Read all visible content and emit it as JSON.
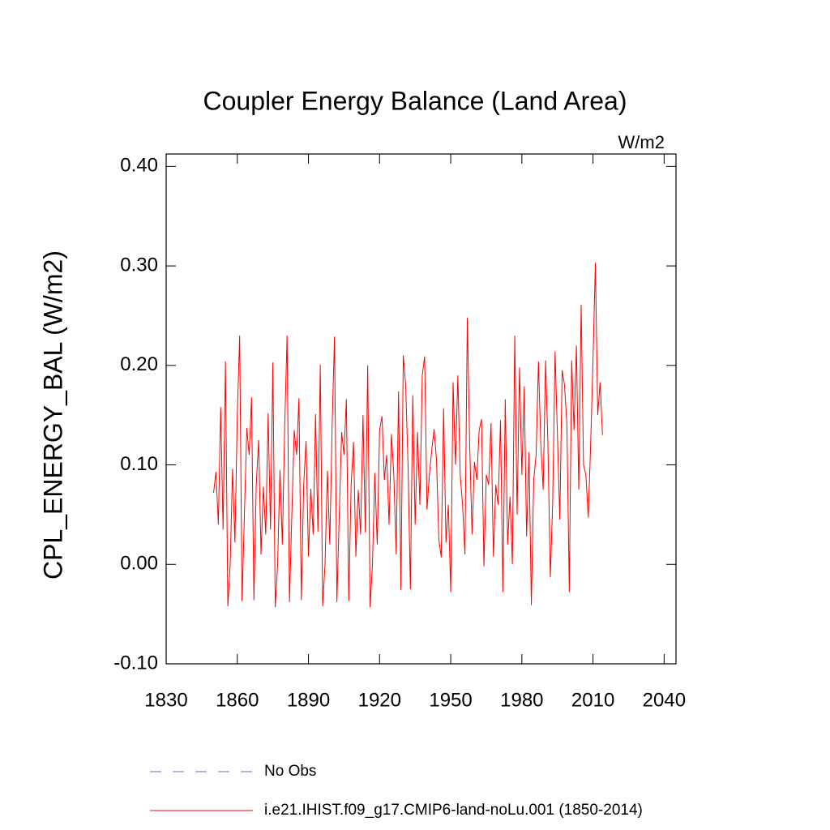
{
  "chart_data": {
    "type": "line",
    "title": "Coupler Energy Balance (Land Area)",
    "unit_label": "W/m2",
    "y_label": "CPL_ENERGY_BAL  (W/m2)",
    "xlim": [
      1830,
      2045
    ],
    "ylim": [
      -0.1,
      0.4125
    ],
    "xticks": [
      1830,
      1860,
      1890,
      1920,
      1950,
      1980,
      2010,
      2040
    ],
    "yticks": [
      {
        "value": -0.1,
        "label": "-0.10"
      },
      {
        "value": 0,
        "label": "0.00"
      },
      {
        "value": 0.1,
        "label": "0.10"
      },
      {
        "value": 0.2,
        "label": "0.20"
      },
      {
        "value": 0.3,
        "label": "0.30"
      },
      {
        "value": 0.4,
        "label": "0.40"
      }
    ],
    "legend_items": [
      {
        "name": "No Obs",
        "color": "#6a6ac4",
        "dash": true
      }
    ],
    "x": [
      1850,
      1851,
      1852,
      1853,
      1854,
      1855,
      1856,
      1857,
      1858,
      1859,
      1860,
      1861,
      1862,
      1863,
      1864,
      1865,
      1866,
      1867,
      1868,
      1869,
      1870,
      1871,
      1872,
      1873,
      1874,
      1875,
      1876,
      1877,
      1878,
      1879,
      1880,
      1881,
      1882,
      1883,
      1884,
      1885,
      1886,
      1887,
      1888,
      1889,
      1890,
      1891,
      1892,
      1893,
      1894,
      1895,
      1896,
      1897,
      1898,
      1899,
      1900,
      1901,
      1902,
      1903,
      1904,
      1905,
      1906,
      1907,
      1908,
      1909,
      1910,
      1911,
      1912,
      1913,
      1914,
      1915,
      1916,
      1917,
      1918,
      1919,
      1920,
      1921,
      1922,
      1923,
      1924,
      1925,
      1926,
      1927,
      1928,
      1929,
      1930,
      1931,
      1932,
      1933,
      1934,
      1935,
      1936,
      1937,
      1938,
      1939,
      1940,
      1941,
      1942,
      1943,
      1944,
      1945,
      1946,
      1947,
      1948,
      1949,
      1950,
      1951,
      1952,
      1953,
      1954,
      1955,
      1956,
      1957,
      1958,
      1959,
      1960,
      1961,
      1962,
      1963,
      1964,
      1965,
      1966,
      1967,
      1968,
      1969,
      1970,
      1971,
      1972,
      1973,
      1974,
      1975,
      1976,
      1977,
      1978,
      1979,
      1980,
      1981,
      1982,
      1983,
      1984,
      1985,
      1986,
      1987,
      1988,
      1989,
      1990,
      1991,
      1992,
      1993,
      1994,
      1995,
      1996,
      1997,
      1998,
      1999,
      2000,
      2001,
      2002,
      2003,
      2004,
      2005,
      2006,
      2007,
      2008,
      2009,
      2010,
      2011,
      2012,
      2013,
      2014
    ],
    "series": [
      {
        "name": "i.e21.IHIST.f09_g17.CMIP6-land-noLu.001 (1850-2014)",
        "color": "#ff0000",
        "values": [
          0.072,
          0.093,
          0.04,
          0.158,
          0.035,
          0.204,
          -0.042,
          0.0,
          0.096,
          0.022,
          0.15,
          0.23,
          -0.037,
          0.05,
          0.137,
          0.11,
          0.168,
          -0.036,
          0.08,
          0.125,
          0.01,
          0.078,
          0.03,
          0.152,
          0.035,
          0.203,
          -0.043,
          0.0,
          0.095,
          0.02,
          0.14,
          0.23,
          -0.038,
          0.05,
          0.135,
          0.11,
          0.167,
          -0.036,
          0.08,
          0.124,
          0.008,
          0.076,
          0.03,
          0.151,
          0.033,
          0.201,
          -0.042,
          0.0,
          0.094,
          0.02,
          0.14,
          0.229,
          -0.038,
          0.05,
          0.133,
          0.11,
          0.166,
          -0.037,
          0.08,
          0.123,
          0.008,
          0.075,
          0.03,
          0.15,
          0.032,
          0.2,
          -0.043,
          0.0,
          0.092,
          0.02,
          0.135,
          0.149,
          0.085,
          0.11,
          0.04,
          0.131,
          0.09,
          0.01,
          0.174,
          -0.026,
          0.21,
          0.18,
          0.1,
          -0.025,
          0.17,
          0.04,
          0.133,
          0.06,
          0.19,
          0.209,
          0.055,
          0.09,
          0.115,
          0.136,
          0.105,
          0.025,
          0.007,
          0.157,
          0.022,
          0.06,
          -0.028,
          0.183,
          0.1,
          0.19,
          0.09,
          0.06,
          0.01,
          0.248,
          0.12,
          0.03,
          0.103,
          0.085,
          0.135,
          0.146,
          -0.002,
          0.09,
          0.08,
          0.142,
          0.008,
          0.08,
          0.06,
          0.145,
          -0.028,
          0.166,
          0.02,
          0.068,
          0.0,
          0.23,
          0.05,
          0.198,
          0.09,
          0.179,
          0.028,
          0.113,
          -0.041,
          0.085,
          0.11,
          0.204,
          0.12,
          0.075,
          0.205,
          0.12,
          -0.013,
          0.062,
          0.214,
          0.13,
          0.045,
          0.195,
          0.18,
          0.14,
          -0.028,
          0.205,
          0.135,
          0.22,
          0.075,
          0.261,
          0.1,
          0.09,
          0.047,
          0.12,
          0.205,
          0.303,
          0.15,
          0.183,
          0.13
        ]
      }
    ]
  }
}
